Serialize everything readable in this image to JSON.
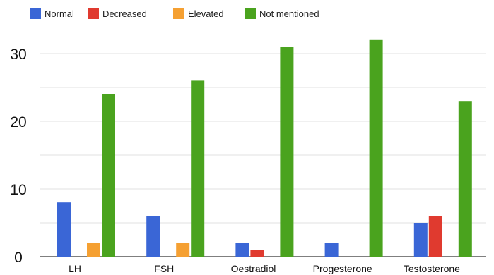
{
  "chart_data": {
    "type": "bar",
    "categories": [
      "LH",
      "FSH",
      "Oestradiol",
      "Progesterone",
      "Testosterone"
    ],
    "series": [
      {
        "name": "Normal",
        "color": "#3a66d6",
        "values": [
          8,
          6,
          2,
          2,
          5
        ]
      },
      {
        "name": "Decreased",
        "color": "#e03a2f",
        "values": [
          0,
          0,
          1,
          0,
          6
        ]
      },
      {
        "name": "Elevated",
        "color": "#f5a032",
        "values": [
          2,
          2,
          0,
          0,
          0
        ]
      },
      {
        "name": "Not mentioned",
        "color": "#4aa31e",
        "values": [
          24,
          26,
          31,
          32,
          23
        ]
      }
    ],
    "yticks": [
      0,
      10,
      20,
      30
    ],
    "ylim": [
      0,
      34
    ],
    "grid": true,
    "legend_position": "top",
    "title": "",
    "xlabel": "",
    "ylabel": ""
  }
}
